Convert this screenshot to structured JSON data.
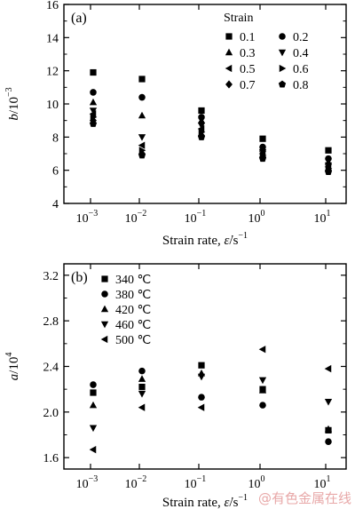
{
  "watermark": "@有色金属在线",
  "chart_data": [
    {
      "panel_label": "(a)",
      "type": "scatter",
      "xlabel_text": "Strain rate, ",
      "xlabel_var": "ε̇",
      "xlabel_unit": "/s",
      "xlabel_unit_exp": "−1",
      "ylabel_var": "b",
      "ylabel_unit": "/10",
      "ylabel_unit_exp": "−3",
      "x_categories": [
        "10^-3",
        "10^-2",
        "10^-1",
        "10^0",
        "10^1"
      ],
      "x_ticklabels": [
        {
          "base": "10",
          "exp": "−3"
        },
        {
          "base": "10",
          "exp": "−2"
        },
        {
          "base": "10",
          "exp": "−1"
        },
        {
          "base": "10",
          "exp": "0"
        },
        {
          "base": "10",
          "exp": "1"
        }
      ],
      "ylim": [
        4,
        16
      ],
      "yticks": [
        4,
        6,
        8,
        10,
        12,
        14,
        16
      ],
      "legend_title": "Strain",
      "series": [
        {
          "name": "0.1",
          "marker": "square",
          "values": [
            11.9,
            11.5,
            9.6,
            7.9,
            7.2
          ]
        },
        {
          "name": "0.2",
          "marker": "circle",
          "values": [
            10.7,
            10.4,
            9.2,
            7.4,
            6.7
          ]
        },
        {
          "name": "0.3",
          "marker": "triangle-up",
          "values": [
            10.1,
            9.3,
            9.0,
            7.3,
            6.5
          ]
        },
        {
          "name": "0.4",
          "marker": "triangle-down",
          "values": [
            9.6,
            8.0,
            8.7,
            7.1,
            6.3
          ]
        },
        {
          "name": "0.5",
          "marker": "triangle-left",
          "values": [
            9.4,
            7.5,
            8.5,
            7.0,
            6.2
          ]
        },
        {
          "name": "0.6",
          "marker": "triangle-right",
          "values": [
            9.2,
            7.2,
            8.3,
            6.9,
            6.1
          ]
        },
        {
          "name": "0.7",
          "marker": "diamond",
          "values": [
            9.0,
            7.0,
            8.1,
            6.8,
            6.0
          ]
        },
        {
          "name": "0.8",
          "marker": "pentagon",
          "values": [
            8.8,
            6.9,
            8.0,
            6.7,
            5.9
          ]
        }
      ]
    },
    {
      "panel_label": "(b)",
      "type": "scatter",
      "xlabel_text": "Strain rate, ",
      "xlabel_var": "ε̇",
      "xlabel_unit": "/s",
      "xlabel_unit_exp": "−1",
      "ylabel_var": "a",
      "ylabel_unit": "/10",
      "ylabel_unit_exp": "4",
      "x_categories": [
        "10^-3",
        "10^-2",
        "10^-1",
        "10^0",
        "10^1"
      ],
      "x_ticklabels": [
        {
          "base": "10",
          "exp": "−3"
        },
        {
          "base": "10",
          "exp": "−2"
        },
        {
          "base": "10",
          "exp": "−1"
        },
        {
          "base": "10",
          "exp": "0"
        },
        {
          "base": "10",
          "exp": "1"
        }
      ],
      "ylim": [
        1.5,
        3.3
      ],
      "yticks": [
        1.6,
        2.0,
        2.4,
        2.8,
        3.2
      ],
      "series": [
        {
          "name": "340 ℃",
          "marker": "square",
          "values": [
            2.17,
            2.22,
            2.41,
            2.2,
            1.84
          ]
        },
        {
          "name": "380 ℃",
          "marker": "circle",
          "values": [
            2.24,
            2.36,
            2.13,
            2.06,
            1.74
          ]
        },
        {
          "name": "420 ℃",
          "marker": "triangle-up",
          "values": [
            2.06,
            2.29,
            2.34,
            2.19,
            1.85
          ]
        },
        {
          "name": "460 ℃",
          "marker": "triangle-down",
          "values": [
            1.86,
            2.16,
            2.31,
            2.28,
            2.09
          ]
        },
        {
          "name": "500 ℃",
          "marker": "triangle-left",
          "values": [
            1.67,
            2.04,
            2.04,
            2.55,
            2.38
          ]
        }
      ]
    }
  ]
}
